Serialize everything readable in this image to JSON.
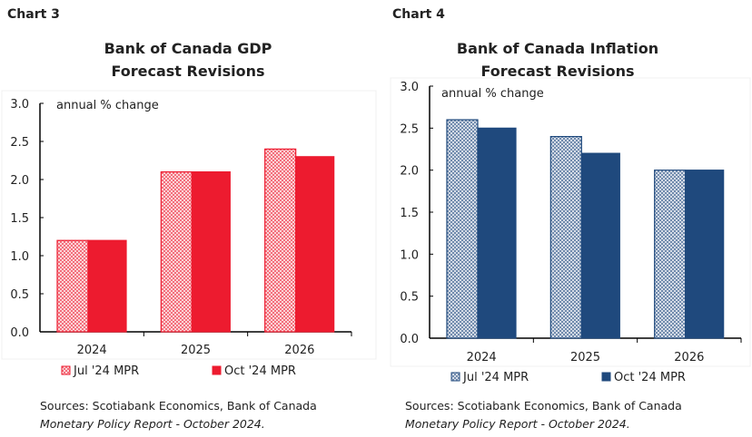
{
  "chart_data": [
    {
      "type": "bar",
      "label": "Chart 3",
      "title": [
        "Bank of Canada GDP",
        "Forecast Revisions"
      ],
      "ylabel": "annual % change",
      "categories": [
        "2024",
        "2025",
        "2026"
      ],
      "ylim": [
        0,
        3.0
      ],
      "yticks": [
        "0.0",
        "0.5",
        "1.0",
        "1.5",
        "2.0",
        "2.5",
        "3.0"
      ],
      "series": [
        {
          "name": "Jul '24 MPR",
          "values": [
            1.2,
            2.1,
            2.4
          ],
          "color": "#ed1b2f",
          "pattern": "hatched"
        },
        {
          "name": "Oct '24 MPR",
          "values": [
            1.2,
            2.1,
            2.3
          ],
          "color": "#ed1b2f",
          "pattern": "solid"
        }
      ],
      "legend": "bottom",
      "grid": false,
      "source": [
        "Sources: Scotiabank Economics, Bank of Canada",
        "Monetary Policy Report - October 2024."
      ]
    },
    {
      "type": "bar",
      "label": "Chart 4",
      "title": [
        "Bank of Canada Inflation",
        "Forecast Revisions"
      ],
      "ylabel": "annual % change",
      "categories": [
        "2024",
        "2025",
        "2026"
      ],
      "ylim": [
        0,
        3.0
      ],
      "yticks": [
        "0.0",
        "0.5",
        "1.0",
        "1.5",
        "2.0",
        "2.5",
        "3.0"
      ],
      "series": [
        {
          "name": "Jul '24 MPR",
          "values": [
            2.6,
            2.4,
            2.0
          ],
          "color": "#1f497d",
          "pattern": "hatched"
        },
        {
          "name": "Oct '24 MPR",
          "values": [
            2.5,
            2.2,
            2.0
          ],
          "color": "#1f497d",
          "pattern": "solid"
        }
      ],
      "legend": "bottom",
      "grid": false,
      "source": [
        "Sources: Scotiabank Economics, Bank of Canada",
        "Monetary Policy Report - October 2024."
      ]
    }
  ]
}
